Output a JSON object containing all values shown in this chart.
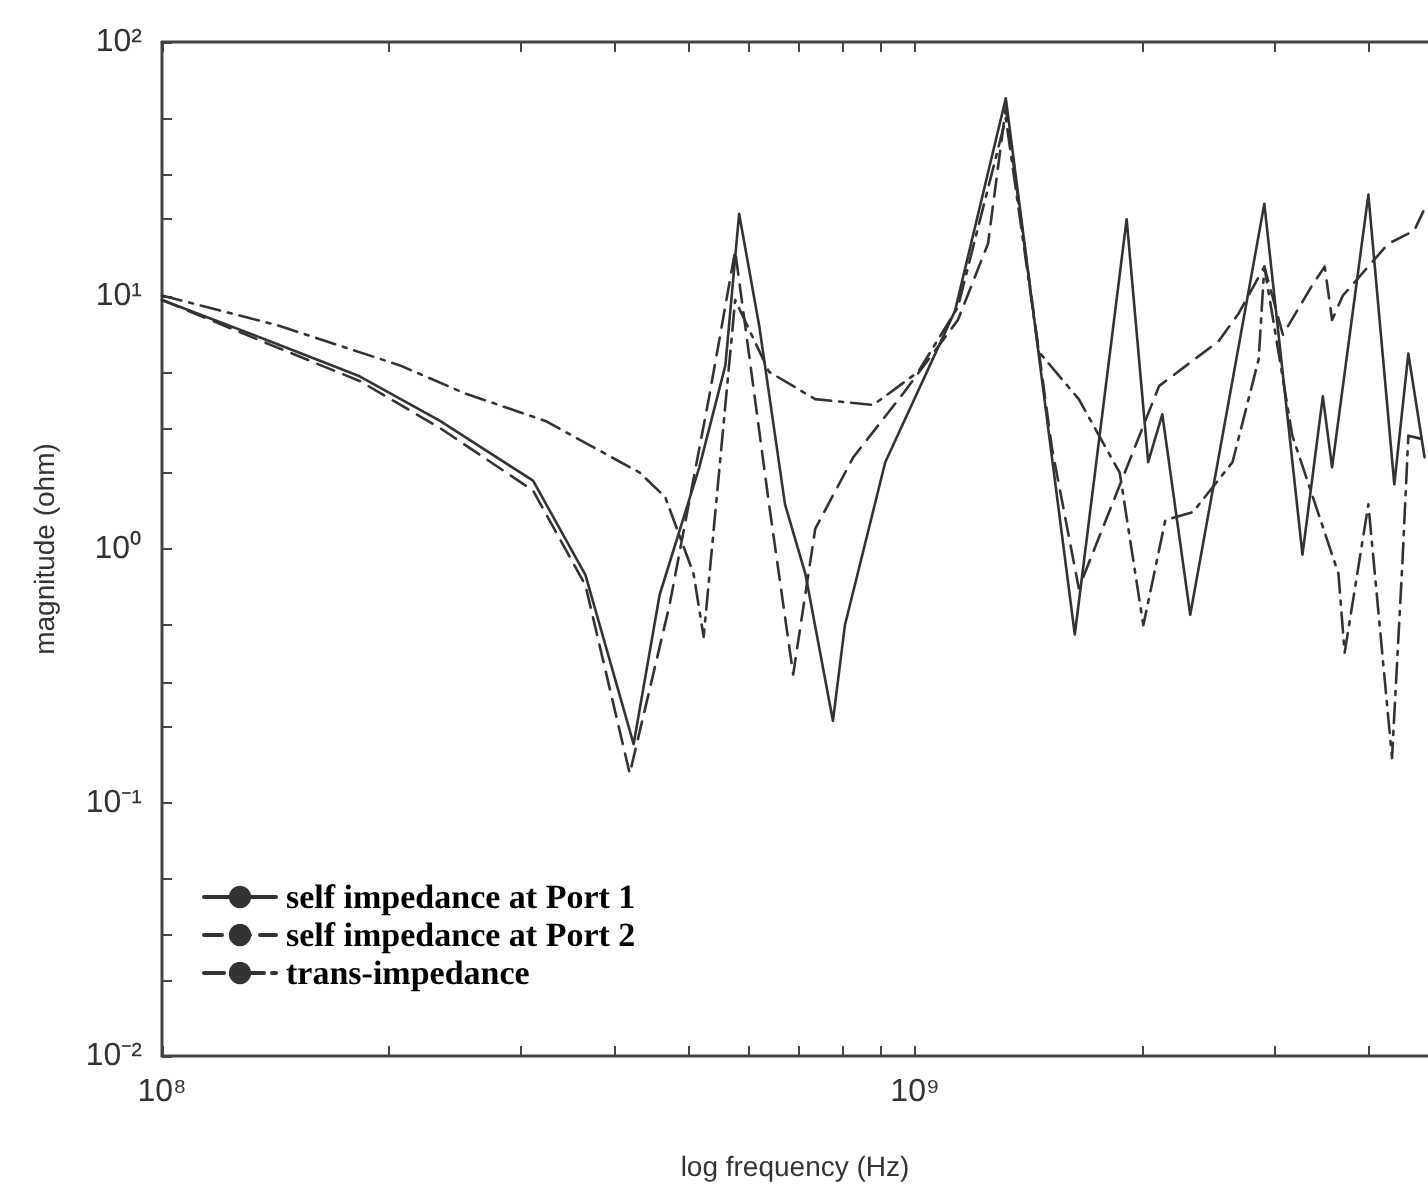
{
  "chart_data": {
    "type": "line",
    "xlabel": "log frequency (Hz)",
    "ylabel": "magnitude (ohm)",
    "log": "xy",
    "grid": false,
    "legend": "bottom left",
    "marker": "none",
    "xlim": [
      100000000,
      4800000000
    ],
    "ylim": [
      0.01,
      100
    ],
    "xticks": [
      {
        "value": 100000000,
        "label": "10⁸"
      },
      {
        "value": 200000000,
        "label": null
      },
      {
        "value": 300000000,
        "label": null
      },
      {
        "value": 400000000,
        "label": null
      },
      {
        "value": 500000000,
        "label": null
      },
      {
        "value": 600000000,
        "label": null
      },
      {
        "value": 700000000,
        "label": null
      },
      {
        "value": 800000000,
        "label": null
      },
      {
        "value": 900000000,
        "label": null
      },
      {
        "value": 1000000000,
        "label": "10⁹"
      },
      {
        "value": 2000000000,
        "label": null
      },
      {
        "value": 3000000000,
        "label": null
      },
      {
        "value": 4000000000,
        "label": null
      }
    ],
    "yticks": [
      {
        "value": 0.01,
        "label": "10⁻²"
      },
      {
        "value": 0.02,
        "label": null
      },
      {
        "value": 0.03,
        "label": null
      },
      {
        "value": 0.05,
        "label": null
      },
      {
        "value": 0.1,
        "label": "10⁻¹"
      },
      {
        "value": 0.2,
        "label": null
      },
      {
        "value": 0.3,
        "label": null
      },
      {
        "value": 0.5,
        "label": null
      },
      {
        "value": 1,
        "label": "10⁰"
      },
      {
        "value": 2,
        "label": null
      },
      {
        "value": 3,
        "label": null
      },
      {
        "value": 5,
        "label": null
      },
      {
        "value": 10,
        "label": "10¹"
      },
      {
        "value": 20,
        "label": null
      },
      {
        "value": 30,
        "label": null
      },
      {
        "value": 50,
        "label": null
      },
      {
        "value": 100,
        "label": "10²"
      }
    ],
    "series": [
      {
        "name": "self impedance at Port 1",
        "color": "#333333",
        "line_style": "solid",
        "x": [
          100000000,
          141000000,
          183000000,
          234000000,
          311000000,
          365000000,
          423000000,
          458000000,
          517000000,
          560000000,
          584000000,
          621000000,
          672000000,
          715000000,
          778000000,
          807000000,
          913000000,
          1130000000,
          1320000000,
          1520000000,
          1630000000,
          1910000000,
          2040000000,
          2130000000,
          2320000000,
          2910000000,
          3270000000,
          3480000000,
          3580000000,
          4000000000,
          4330000000,
          4520000000,
          4750000000
        ],
        "values": [
          9.6,
          6.5,
          4.8,
          3.2,
          1.86,
          0.79,
          0.17,
          0.66,
          2.1,
          5.3,
          21,
          7.6,
          1.5,
          0.8,
          0.21,
          0.5,
          2.2,
          8.7,
          60,
          2.3,
          0.46,
          20,
          2.2,
          3.4,
          0.55,
          23,
          0.95,
          4,
          2.1,
          25,
          1.8,
          5.9,
          2.3
        ]
      },
      {
        "name": "self impedance at Port 2",
        "color": "#333333",
        "line_style": "dashed",
        "x": [
          100000000,
          141000000,
          183000000,
          234000000,
          311000000,
          365000000,
          418000000,
          472000000,
          533000000,
          577000000,
          640000000,
          689000000,
          737000000,
          828000000,
          964000000,
          1140000000,
          1250000000,
          1320000000,
          1520000000,
          1650000000,
          2110000000,
          2530000000,
          2690000000,
          2910000000,
          3080000000,
          3370000000,
          3500000000,
          3580000000,
          3700000000,
          4250000000,
          4600000000,
          4750000000
        ],
        "values": [
          9.6,
          6.3,
          4.6,
          3.0,
          1.7,
          0.72,
          0.13,
          0.6,
          4,
          15,
          1.5,
          0.32,
          1.2,
          2.3,
          4.1,
          8,
          16,
          55,
          2.5,
          0.7,
          4.4,
          6.6,
          8.5,
          13,
          7,
          11,
          13,
          8,
          10,
          16,
          18,
          22
        ]
      },
      {
        "name": "trans-impedance",
        "color": "#333333",
        "line_style": "dashdot",
        "x": [
          100000000,
          143000000,
          207000000,
          253000000,
          323000000,
          431000000,
          466000000,
          508000000,
          524000000,
          577000000,
          640000000,
          737000000,
          880000000,
          1010000000,
          1140000000,
          1320000000,
          1460000000,
          1650000000,
          1870000000,
          2010000000,
          2150000000,
          2340000000,
          2640000000,
          2860000000,
          2910000000,
          3170000000,
          3650000000,
          3720000000,
          4000000000,
          4300000000,
          4440000000,
          4520000000,
          4750000000
        ],
        "values": [
          10,
          7.6,
          5.3,
          4.1,
          3.2,
          2.0,
          1.6,
          0.8,
          0.45,
          9.6,
          5,
          3.9,
          3.7,
          5,
          9,
          50,
          6,
          3.9,
          2,
          0.5,
          1.3,
          1.4,
          2.2,
          5.6,
          13,
          2.8,
          0.8,
          0.39,
          1.5,
          0.15,
          0.9,
          2.8,
          2.7
        ]
      }
    ]
  }
}
